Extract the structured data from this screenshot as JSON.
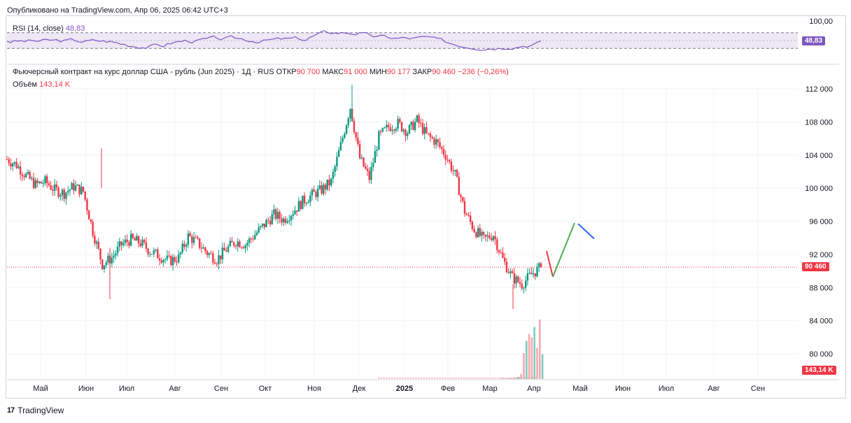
{
  "header": {
    "published": "Опубликовано на TradingView.com, Апр 06, 2025 06:42 UTC+3"
  },
  "rsi": {
    "label": "RSI (14, close)",
    "value": "48,83",
    "top_tick": "100,00",
    "badge": "48,83",
    "color": "#7e57c2",
    "band_color": "#ede7f6"
  },
  "legend": {
    "title": "Фьючерсный контракт на курс доллар США - рубль (Jun 2025) · 1Д · RUS",
    "open_label": "ОТКР",
    "open": "90 700",
    "high_label": "МАКС",
    "high": "91 000",
    "low_label": "МИН",
    "low": "90 177",
    "close_label": "ЗАКР",
    "close": "90 460",
    "change": "−236 (−0,26%)",
    "volume_label": "Объём",
    "volume": "143,14 K"
  },
  "price_axis": {
    "ticks": [
      "112 000",
      "108 000",
      "104 000",
      "100 000",
      "96 000",
      "92 000",
      "88 000",
      "84 000",
      "80 000"
    ],
    "last_price": "90 460",
    "last_volume": "143,14 K"
  },
  "time_axis": {
    "labels": [
      "Май",
      "Июн",
      "Июл",
      "Авг",
      "Сен",
      "Окт",
      "Ноя",
      "Дек",
      "2025",
      "Фев",
      "Мар",
      "Апр",
      "Май",
      "Июн",
      "Июл",
      "Авг",
      "Сен"
    ]
  },
  "footer": {
    "brand": "TradingView",
    "mark": "17"
  },
  "colors": {
    "up": "#089981",
    "down": "#f23645",
    "projection_down": "#f23645",
    "projection_up": "#4caf50",
    "projection_tail": "#2962ff"
  },
  "chart_data": {
    "type": "candlestick",
    "title": "Фьючерсный контракт на курс доллар США - рубль (Jun 2025) · 1Д · RUS",
    "ylim": [
      78000,
      113500
    ],
    "weekly_close": [
      103500,
      102800,
      101500,
      100400,
      100800,
      99800,
      99400,
      100200,
      99600,
      94800,
      90800,
      91600,
      93200,
      93800,
      93400,
      92400,
      91800,
      91200,
      91600,
      94200,
      93400,
      92200,
      91400,
      92600,
      93600,
      93200,
      94400,
      95600,
      96800,
      96200,
      97200,
      98400,
      99200,
      99800,
      100800,
      105200,
      109800,
      103600,
      101200,
      106200,
      107400,
      107800,
      106800,
      108200,
      106400,
      105600,
      104000,
      101600,
      97200,
      95000,
      93800,
      94400,
      91400,
      89200,
      88400,
      89600,
      90460
    ],
    "extremes": {
      "max": 112500,
      "min": 85400,
      "last_close": 90460
    },
    "projection": [
      {
        "price": 92400
      },
      {
        "price": 89300
      },
      {
        "price": 95800
      },
      {
        "price": 95700
      },
      {
        "price": 93900
      }
    ],
    "volume_recent_k": [
      2,
      3,
      2,
      4,
      3,
      5,
      8,
      12,
      30,
      150,
      220,
      260,
      240,
      300,
      180,
      343,
      143.14
    ],
    "rsi_value": 48.83
  }
}
